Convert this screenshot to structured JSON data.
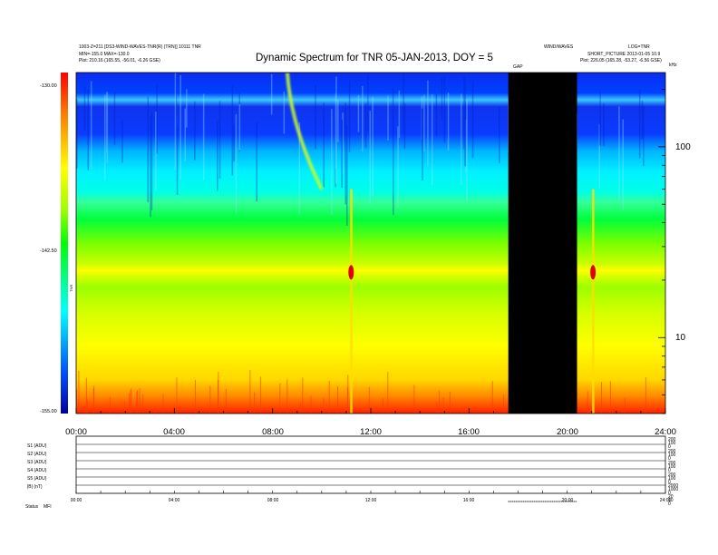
{
  "chart_data": [
    {
      "type": "heatmap",
      "title": "Dynamic Spectrum for TNR 05-JAN-2013, DOY = 5",
      "header_left": [
        "1003-Z=211 [DS3-WIND-WAVES-TNR(R) (TRN)] 10111 TNR",
        "MIN=-155.0 MAX=-130.0",
        "Plot: 210.16 (165.55, -56.01, -6.26 GSE)"
      ],
      "header_right": [
        "WIND/WAVES",
        "LOG=TNR",
        "SHORT_PICTURE 2013-01-05 10.9",
        "Plot: 226.05 (165.28, -53.27, -6.56 GSE)"
      ],
      "data_gap_label": "GAP",
      "x_ticks": [
        "00:00",
        "04:00",
        "08:00",
        "12:00",
        "16:00",
        "20:00",
        "24:00"
      ],
      "x_range_hours": [
        0,
        24
      ],
      "y_scale": "log",
      "y_unit": "kHz",
      "y_ticks": [
        "100",
        "10"
      ],
      "y_range_khz": [
        4,
        245
      ],
      "colorbar": {
        "ticks": [
          "-130.00",
          "-142.50",
          "-155.00"
        ],
        "range": [
          -155,
          -130
        ],
        "label": "TNR"
      },
      "data_gap_hours": [
        17.6,
        20.4
      ],
      "features": [
        {
          "label": "",
          "start_hours": 8.6,
          "end_hours": 10.0,
          "kind": "drifting burst"
        },
        {
          "label": "",
          "start_hours": 11.1,
          "end_hours": 11.3,
          "kind": "intense burst"
        },
        {
          "label": "",
          "start_hours": 20.9,
          "end_hours": 21.2,
          "kind": "intense burst"
        }
      ]
    },
    {
      "type": "line",
      "panel_labels": [
        "S1 (ADU)",
        "S2 (ADU)",
        "S3 (ADU)",
        "S4 (ADU)",
        "S5 (ADU)",
        "|B| (nT)"
      ],
      "right_scale": [
        "200",
        "100",
        "0",
        "200",
        "100",
        "0",
        "200",
        "100",
        "0",
        "200",
        "100",
        "0",
        "2000",
        "1000",
        "0",
        "20",
        "10",
        "0"
      ],
      "x_ticks": [
        "00:00",
        "04:00",
        "08:00",
        "12:00",
        "16:00",
        "20:00",
        "24:00"
      ],
      "footer": [
        "Status",
        "MFI"
      ]
    }
  ]
}
